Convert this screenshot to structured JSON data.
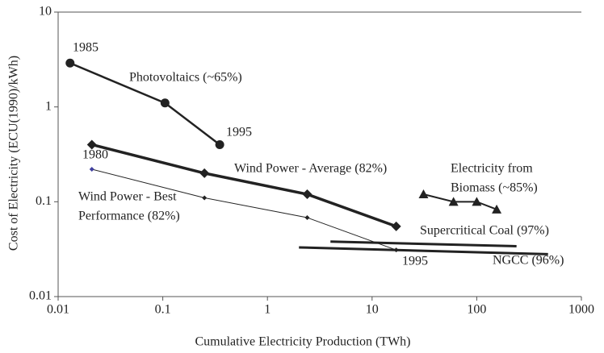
{
  "chart_data": {
    "type": "line",
    "x_label": "Cumulative Electricity Production (TWh)",
    "y_label": "Cost of Electricity (ECU(1990)/kWh)",
    "xscale": "log",
    "yscale": "log",
    "xlim": [
      0.01,
      1000
    ],
    "ylim": [
      0.01,
      10
    ],
    "xticks": [
      0.01,
      0.1,
      1,
      10,
      100,
      1000
    ],
    "yticks": [
      0.01,
      0.1,
      1,
      10
    ],
    "series": [
      {
        "name": [
          "Photovoltaics (~65%)"
        ],
        "color": "#222222",
        "marker": "circle",
        "x": [
          0.013,
          0.105,
          0.35
        ],
        "values": [
          2.9,
          1.1,
          0.4
        ]
      },
      {
        "name": [
          "Wind Power - Average (82%)"
        ],
        "color": "#222222",
        "marker": "diamond",
        "x": [
          0.021,
          0.25,
          2.4,
          17
        ],
        "values": [
          0.4,
          0.2,
          0.12,
          0.055
        ]
      },
      {
        "name": [
          "Wind Power - Best",
          "Performance (82%)"
        ],
        "color": "#222222",
        "marker": "small-diamond",
        "x": [
          0.021,
          0.25,
          2.4,
          17
        ],
        "values": [
          0.22,
          0.11,
          0.068,
          0.031
        ]
      },
      {
        "name": [
          "Electricity from",
          "Biomass (~85%)"
        ],
        "color": "#222222",
        "marker": "triangle",
        "x": [
          31,
          60,
          100,
          155
        ],
        "values": [
          0.12,
          0.1,
          0.1,
          0.083
        ]
      },
      {
        "name": [
          "Supercritical Coal (97%)"
        ],
        "color": "#222222",
        "marker": "none",
        "x": [
          4,
          240
        ],
        "values": [
          0.038,
          0.034
        ]
      },
      {
        "name": [
          "NGCC (96%)"
        ],
        "color": "#222222",
        "marker": "none",
        "x": [
          2,
          480
        ],
        "values": [
          0.033,
          0.028
        ]
      }
    ],
    "annotations": [
      "1985",
      "1995",
      "1980",
      "1995"
    ]
  }
}
